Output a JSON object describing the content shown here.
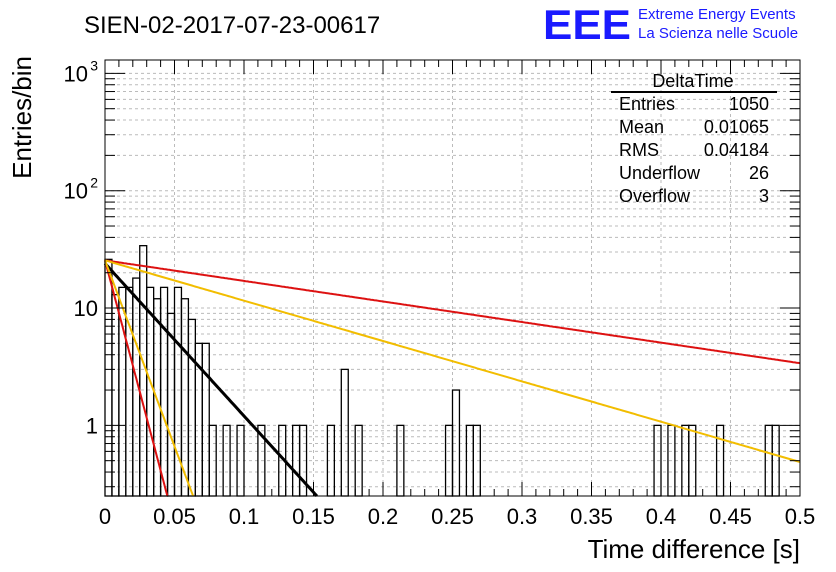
{
  "chart_data": {
    "type": "histogram",
    "title": "SIEN-02-2017-07-23-00617",
    "xlabel": "Time difference [s]",
    "ylabel": "Entries/bin",
    "xlim": [
      0,
      0.5
    ],
    "ylim": [
      0.25,
      1300
    ],
    "log_y": true,
    "grid": true,
    "x_ticks": [
      "0",
      "0.05",
      "0.1",
      "0.15",
      "0.2",
      "0.25",
      "0.3",
      "0.35",
      "0.4",
      "0.45",
      "0.5"
    ],
    "x_tick_values": [
      0,
      0.05,
      0.1,
      0.15,
      0.2,
      0.25,
      0.3,
      0.35,
      0.4,
      0.45,
      0.5
    ],
    "y_ticks": [
      {
        "value": 1,
        "base": "1",
        "exp": ""
      },
      {
        "value": 10,
        "base": "10",
        "exp": ""
      },
      {
        "value": 100,
        "base": "10",
        "exp": "2"
      },
      {
        "value": 1000,
        "base": "10",
        "exp": "3"
      }
    ],
    "bin_width": 0.005,
    "bins": [
      [
        0.0,
        26
      ],
      [
        0.005,
        13
      ],
      [
        0.01,
        15
      ],
      [
        0.015,
        15
      ],
      [
        0.02,
        18
      ],
      [
        0.025,
        34
      ],
      [
        0.03,
        15
      ],
      [
        0.035,
        12
      ],
      [
        0.04,
        15
      ],
      [
        0.045,
        9
      ],
      [
        0.05,
        15
      ],
      [
        0.055,
        12
      ],
      [
        0.06,
        8
      ],
      [
        0.065,
        5
      ],
      [
        0.07,
        5
      ],
      [
        0.075,
        1
      ],
      [
        0.08,
        0
      ],
      [
        0.085,
        1
      ],
      [
        0.09,
        0
      ],
      [
        0.095,
        1
      ],
      [
        0.1,
        0
      ],
      [
        0.105,
        0
      ],
      [
        0.11,
        1
      ],
      [
        0.115,
        0
      ],
      [
        0.12,
        0
      ],
      [
        0.125,
        1
      ],
      [
        0.13,
        0
      ],
      [
        0.135,
        1
      ],
      [
        0.14,
        1
      ],
      [
        0.145,
        0
      ],
      [
        0.15,
        0
      ],
      [
        0.155,
        0
      ],
      [
        0.16,
        1
      ],
      [
        0.165,
        0
      ],
      [
        0.17,
        3
      ],
      [
        0.175,
        0
      ],
      [
        0.18,
        1
      ],
      [
        0.185,
        0
      ],
      [
        0.19,
        0
      ],
      [
        0.195,
        0
      ],
      [
        0.2,
        0
      ],
      [
        0.205,
        0
      ],
      [
        0.21,
        1
      ],
      [
        0.215,
        0
      ],
      [
        0.22,
        0
      ],
      [
        0.225,
        0
      ],
      [
        0.23,
        0
      ],
      [
        0.235,
        0
      ],
      [
        0.24,
        0
      ],
      [
        0.245,
        1
      ],
      [
        0.25,
        2
      ],
      [
        0.255,
        0
      ],
      [
        0.26,
        1
      ],
      [
        0.265,
        1
      ],
      [
        0.395,
        1
      ],
      [
        0.405,
        1
      ],
      [
        0.415,
        1
      ],
      [
        0.42,
        1
      ],
      [
        0.44,
        1
      ],
      [
        0.475,
        1
      ],
      [
        0.48,
        1
      ]
    ],
    "fits": [
      {
        "color": "#000000",
        "a": 24,
        "tau": 0.0334
      },
      {
        "color": "#dd1111",
        "a": 25.5,
        "tau": 0.0097
      },
      {
        "color": "#dd1111",
        "a": 25.5,
        "tau": 0.2477
      },
      {
        "color": "#f2bd00",
        "a": 25.5,
        "tau": 0.0137
      },
      {
        "color": "#f2bd00",
        "a": 25.5,
        "tau": 0.1263
      }
    ],
    "stats": {
      "title": "DeltaTime",
      "rows": [
        {
          "label": "Entries",
          "value": "1050"
        },
        {
          "label": "Mean",
          "value": "0.01065"
        },
        {
          "label": "RMS",
          "value": "0.04184"
        },
        {
          "label": "Underflow",
          "value": "26"
        },
        {
          "label": "Overflow",
          "value": "3"
        }
      ]
    }
  },
  "logo": {
    "mark": "EEE",
    "line1": "Extreme Energy Events",
    "line2": "La Scienza nelle Scuole"
  },
  "colors": {
    "logo_blue": "#1a1aff",
    "fit_black": "#000000",
    "fit_red": "#dd1111",
    "fit_yellow": "#f2bd00",
    "grid": "#bbbbbb"
  }
}
